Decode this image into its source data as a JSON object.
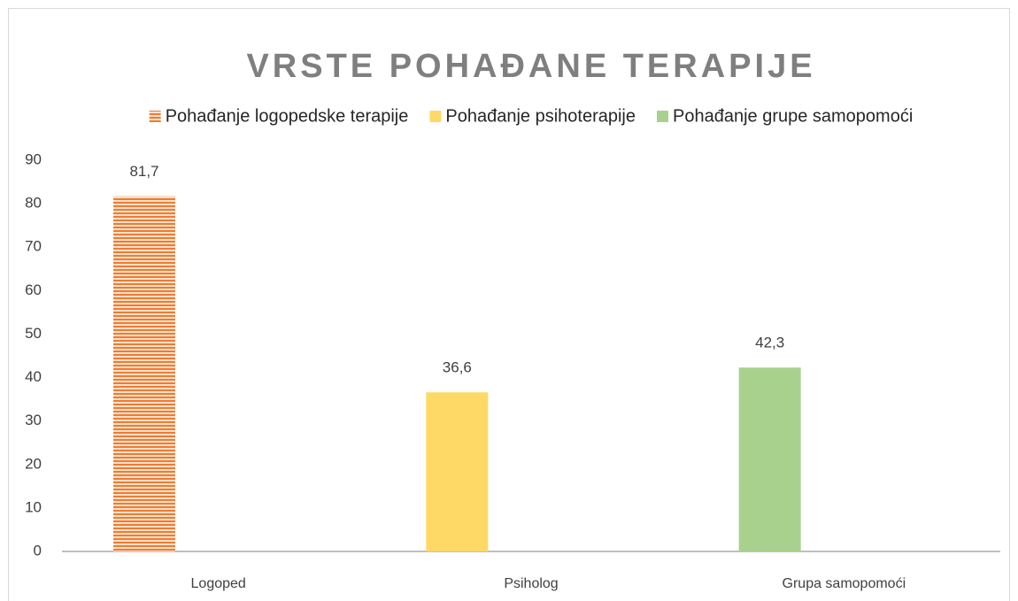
{
  "chart_data": {
    "type": "bar",
    "title": "VRSTE POHAĐANE TERAPIJE",
    "categories": [
      "Logoped",
      "Psiholog",
      "Grupa samopomoći"
    ],
    "series": [
      {
        "name": "Pohađanje logopedske terapije",
        "color": "#ed7d31",
        "hatch": "horizontal",
        "values": [
          81.7,
          null,
          null
        ],
        "value_labels": [
          "81,7",
          null,
          null
        ]
      },
      {
        "name": "Pohađanje psihoterapije",
        "color": "#ffd966",
        "values": [
          null,
          36.6,
          null
        ],
        "value_labels": [
          null,
          "36,6",
          null
        ]
      },
      {
        "name": "Pohađanje grupe samopomoći",
        "color": "#a9d18e",
        "values": [
          null,
          null,
          42.3
        ],
        "value_labels": [
          null,
          null,
          "42,3"
        ]
      }
    ],
    "ylim": [
      0,
      90
    ],
    "yticks": [
      0,
      10,
      20,
      30,
      40,
      50,
      60,
      70,
      80,
      90
    ],
    "grid": false,
    "legend": "top"
  }
}
